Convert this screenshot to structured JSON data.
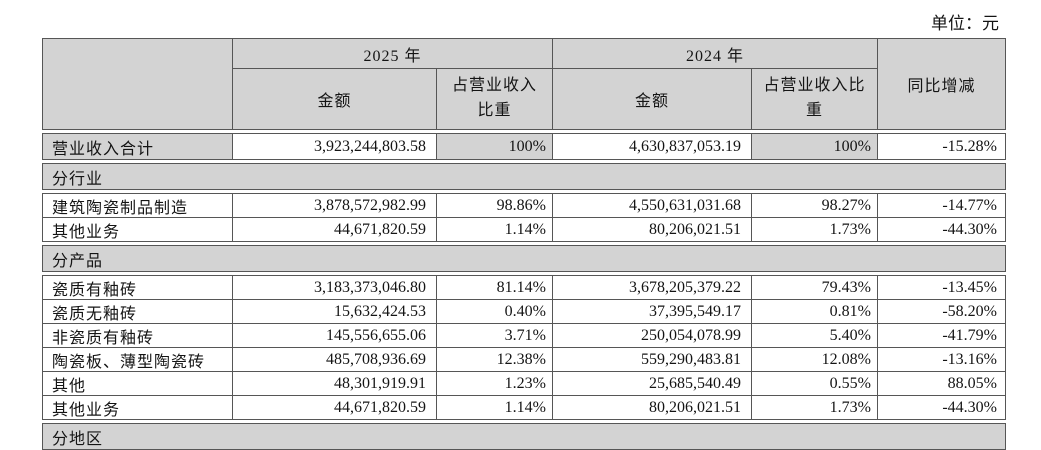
{
  "unit_label": "单位：元",
  "colors": {
    "header_bg": "#d3d3d3",
    "border": "#565656",
    "row_bg": "#ffffff"
  },
  "header": {
    "corner": "",
    "year_2025": "2025 年",
    "year_2024": "2024 年",
    "amount_2025": "金额",
    "pct_2025": "占营业收入比重",
    "amount_2024": "金额",
    "pct_2024": "占营业收入比重",
    "yoy": "同比增减"
  },
  "rows": [
    {
      "type": "summary",
      "label": "营业收入合计",
      "amount_2025": "3,923,244,803.58",
      "pct_2025": "100%",
      "amount_2024": "4,630,837,053.19",
      "pct_2024": "100%",
      "yoy": "-15.28%"
    },
    {
      "type": "section",
      "label": "分行业"
    },
    {
      "type": "data",
      "label": "建筑陶瓷制品制造",
      "amount_2025": "3,878,572,982.99",
      "pct_2025": "98.86%",
      "amount_2024": "4,550,631,031.68",
      "pct_2024": "98.27%",
      "yoy": "-14.77%"
    },
    {
      "type": "data",
      "label": "其他业务",
      "amount_2025": "44,671,820.59",
      "pct_2025": "1.14%",
      "amount_2024": "80,206,021.51",
      "pct_2024": "1.73%",
      "yoy": "-44.30%"
    },
    {
      "type": "section",
      "label": "分产品"
    },
    {
      "type": "data",
      "label": "瓷质有釉砖",
      "amount_2025": "3,183,373,046.80",
      "pct_2025": "81.14%",
      "amount_2024": "3,678,205,379.22",
      "pct_2024": "79.43%",
      "yoy": "-13.45%"
    },
    {
      "type": "data",
      "label": "瓷质无釉砖",
      "amount_2025": "15,632,424.53",
      "pct_2025": "0.40%",
      "amount_2024": "37,395,549.17",
      "pct_2024": "0.81%",
      "yoy": "-58.20%"
    },
    {
      "type": "data",
      "label": "非瓷质有釉砖",
      "amount_2025": "145,556,655.06",
      "pct_2025": "3.71%",
      "amount_2024": "250,054,078.99",
      "pct_2024": "5.40%",
      "yoy": "-41.79%"
    },
    {
      "type": "data",
      "label": "陶瓷板、薄型陶瓷砖",
      "amount_2025": "485,708,936.69",
      "pct_2025": "12.38%",
      "amount_2024": "559,290,483.81",
      "pct_2024": "12.08%",
      "yoy": "-13.16%"
    },
    {
      "type": "data",
      "label": "其他",
      "amount_2025": "48,301,919.91",
      "pct_2025": "1.23%",
      "amount_2024": "25,685,540.49",
      "pct_2024": "0.55%",
      "yoy": "88.05%"
    },
    {
      "type": "data",
      "label": "其他业务",
      "amount_2025": "44,671,820.59",
      "pct_2025": "1.14%",
      "amount_2024": "80,206,021.51",
      "pct_2024": "1.73%",
      "yoy": "-44.30%"
    },
    {
      "type": "section",
      "label": "分地区"
    }
  ]
}
